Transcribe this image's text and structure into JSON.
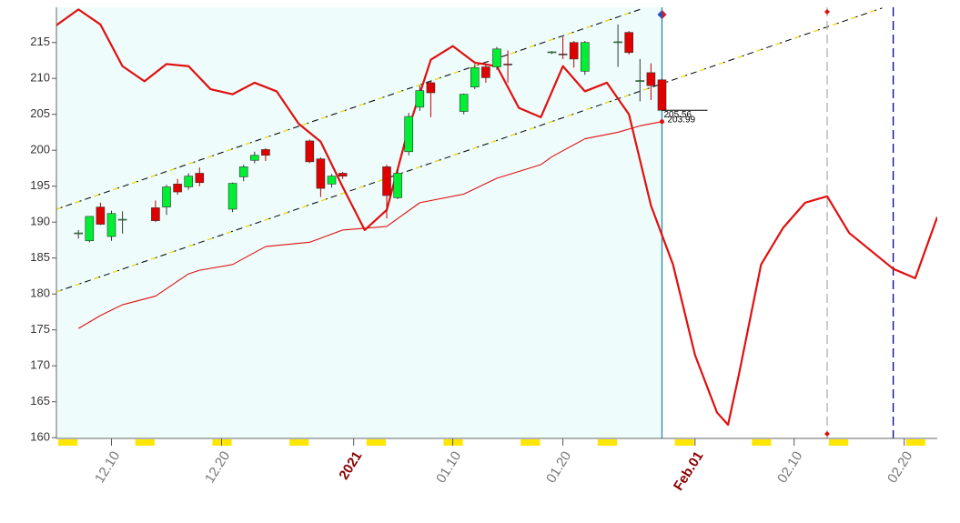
{
  "chart_data": {
    "type": "candlestick",
    "xlim": [
      "12.05",
      "02.23"
    ],
    "ylim": [
      159.9,
      219.9
    ],
    "yticks": [
      160,
      165,
      170,
      175,
      180,
      185,
      190,
      195,
      200,
      205,
      210,
      215
    ],
    "xticks": [
      "12.10",
      "12.20",
      {
        "value": "01.01",
        "label": "2021"
      },
      "01.10",
      "01.20",
      {
        "value": "02.01",
        "label": "Feb.01"
      },
      "02.10",
      "02.20"
    ],
    "up_color": "#00ee33",
    "down_color": "#e00000",
    "x": [
      "12.07",
      "12.08",
      "12.09",
      "12.10",
      "12.11",
      "12.14",
      "12.15",
      "12.16",
      "12.17",
      "12.18",
      "12.21",
      "12.22",
      "12.23",
      "12.24",
      "12.28",
      "12.29",
      "12.30",
      "12.31",
      "01.04",
      "01.05",
      "01.06",
      "01.07",
      "01.08",
      "01.11",
      "01.12",
      "01.13",
      "01.14",
      "01.15",
      "01.19",
      "01.20",
      "01.21",
      "01.22",
      "01.25",
      "01.26",
      "01.27",
      "01.28",
      "01.29"
    ],
    "open": [
      188.4,
      187.4,
      192.1,
      188.0,
      190.3,
      192.0,
      192.1,
      195.3,
      194.9,
      196.8,
      191.8,
      196.3,
      198.6,
      200.1,
      201.3,
      198.8,
      195.3,
      196.8,
      197.7,
      193.4,
      199.8,
      206.0,
      209.4,
      205.4,
      208.8,
      211.6,
      211.6,
      212.0,
      213.6,
      213.4,
      215.0,
      211.0,
      215.0,
      216.4,
      209.6,
      210.8,
      209.8
    ],
    "high": [
      188.9,
      190.8,
      192.7,
      191.6,
      191.5,
      193.0,
      195.2,
      196.0,
      196.8,
      197.6,
      195.5,
      198.0,
      199.8,
      200.3,
      201.5,
      199.0,
      196.7,
      197.0,
      198.0,
      197.4,
      205.2,
      209.0,
      209.6,
      207.9,
      212.0,
      212.0,
      214.4,
      213.9,
      213.8,
      215.8,
      215.2,
      215.2,
      217.5,
      216.6,
      212.7,
      212.1,
      210.0
    ],
    "low": [
      187.7,
      187.2,
      189.6,
      187.4,
      188.4,
      190.0,
      191.0,
      193.8,
      194.5,
      195.0,
      191.4,
      195.7,
      198.2,
      198.5,
      198.2,
      193.5,
      194.8,
      196.0,
      190.5,
      193.2,
      199.3,
      205.5,
      204.6,
      205.0,
      208.5,
      209.4,
      211.2,
      209.4,
      213.4,
      212.7,
      211.5,
      210.5,
      211.6,
      213.3,
      206.8,
      207.0,
      205.5
    ],
    "close": [
      188.5,
      190.8,
      189.7,
      191.2,
      190.4,
      190.2,
      194.9,
      194.2,
      196.4,
      195.5,
      195.4,
      197.7,
      199.3,
      199.3,
      198.4,
      194.7,
      196.4,
      196.4,
      193.7,
      196.8,
      204.7,
      208.3,
      208.0,
      207.8,
      211.5,
      210.1,
      214.1,
      211.9,
      213.7,
      213.3,
      212.7,
      215.0,
      215.1,
      213.6,
      209.7,
      209.0,
      205.56
    ],
    "last_close_label": "205.56",
    "lines": [
      {
        "color": "#e01010",
        "width": 2.2,
        "x": [
          "12.05",
          "12.07",
          "12.09",
          "12.11",
          "12.13",
          "12.15",
          "12.17",
          "12.19",
          "12.21",
          "12.23",
          "12.25",
          "12.27",
          "12.29",
          "12.31",
          "01.02",
          "01.04",
          "01.06",
          "01.08",
          "01.10",
          "01.12",
          "01.14",
          "01.16",
          "01.18",
          "01.20",
          "01.22",
          "01.24",
          "01.26",
          "01.28",
          "01.30",
          "02.01",
          "02.03",
          "02.04",
          "02.05",
          "02.07",
          "02.09",
          "02.11",
          "02.13",
          "02.15",
          "02.17",
          "02.19",
          "02.21",
          "02.23"
        ],
        "values": [
          217.4,
          219.6,
          217.5,
          211.7,
          209.6,
          212.0,
          211.7,
          208.5,
          207.8,
          209.4,
          208.2,
          203.7,
          201.2,
          194.9,
          188.9,
          191.7,
          203.1,
          212.6,
          214.5,
          212.2,
          211.7,
          205.9,
          204.6,
          211.7,
          208.2,
          209.4,
          205.0,
          192.3,
          184.1,
          171.5,
          163.5,
          161.8,
          168.9,
          184.1,
          189.2,
          192.7,
          193.6,
          188.5,
          186.0,
          183.5,
          182.2,
          190.7
        ]
      },
      {
        "color": "#e01010",
        "width": 1.1,
        "x": [
          "12.07",
          "12.09",
          "12.11",
          "12.14",
          "12.17",
          "12.18",
          "12.21",
          "12.24",
          "12.28",
          "12.31",
          "01.04",
          "01.07",
          "01.11",
          "01.14",
          "01.18",
          "01.19",
          "01.22",
          "01.25",
          "01.27",
          "01.29"
        ],
        "values": [
          175.2,
          177.0,
          178.5,
          179.7,
          182.8,
          183.3,
          184.1,
          186.6,
          187.2,
          188.9,
          189.4,
          192.7,
          193.9,
          196.1,
          198.0,
          199.1,
          201.6,
          202.5,
          203.4,
          203.99
        ],
        "last_label": "203.99"
      }
    ],
    "trendlines": [
      {
        "x": [
          "12.05",
          "01.27"
        ],
        "values": [
          191.8,
          219.6
        ]
      },
      {
        "x": [
          "12.05",
          "02.18"
        ],
        "values": [
          180.3,
          219.8
        ]
      }
    ],
    "vlines": [
      {
        "x": "01.29",
        "color": "#2a8a9a",
        "dash": false
      },
      {
        "x": "02.13",
        "color": "#b0b0b0",
        "dash": true
      },
      {
        "x": "02.19",
        "color": "#000090",
        "dash": true
      }
    ]
  }
}
